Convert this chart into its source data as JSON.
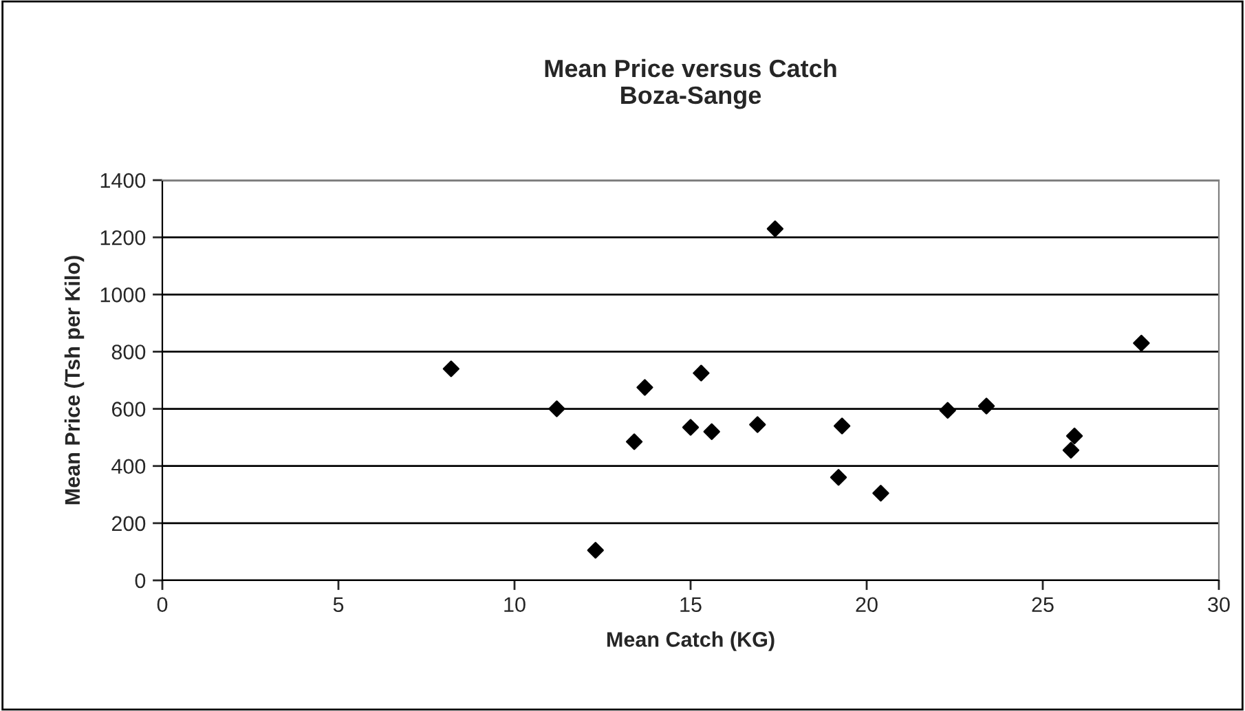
{
  "chart_data": {
    "type": "scatter",
    "title": "Mean Price versus Catch\nBoza-Sange",
    "xlabel": "Mean Catch (KG)",
    "ylabel": "Mean Price (Tsh per Kilo)",
    "x": [
      8.2,
      11.2,
      13.7,
      13.4,
      12.3,
      15.0,
      15.3,
      15.6,
      17.4,
      16.9,
      19.3,
      19.2,
      20.4,
      22.3,
      23.4,
      25.9,
      25.8,
      27.8
    ],
    "series": [
      {
        "color": "#000000",
        "values": [
          740,
          600,
          675,
          485,
          105,
          535,
          725,
          520,
          1230,
          545,
          540,
          360,
          305,
          595,
          610,
          505,
          455,
          830
        ]
      }
    ],
    "xlim": [
      0,
      30
    ],
    "xticks": [
      0,
      5,
      10,
      15,
      20,
      25,
      30
    ],
    "ylim": [
      0,
      1400
    ],
    "yticks": [
      0,
      200,
      400,
      600,
      800,
      1000,
      1200,
      1400
    ],
    "grid": "y",
    "marker": "diamond",
    "legend": false
  }
}
